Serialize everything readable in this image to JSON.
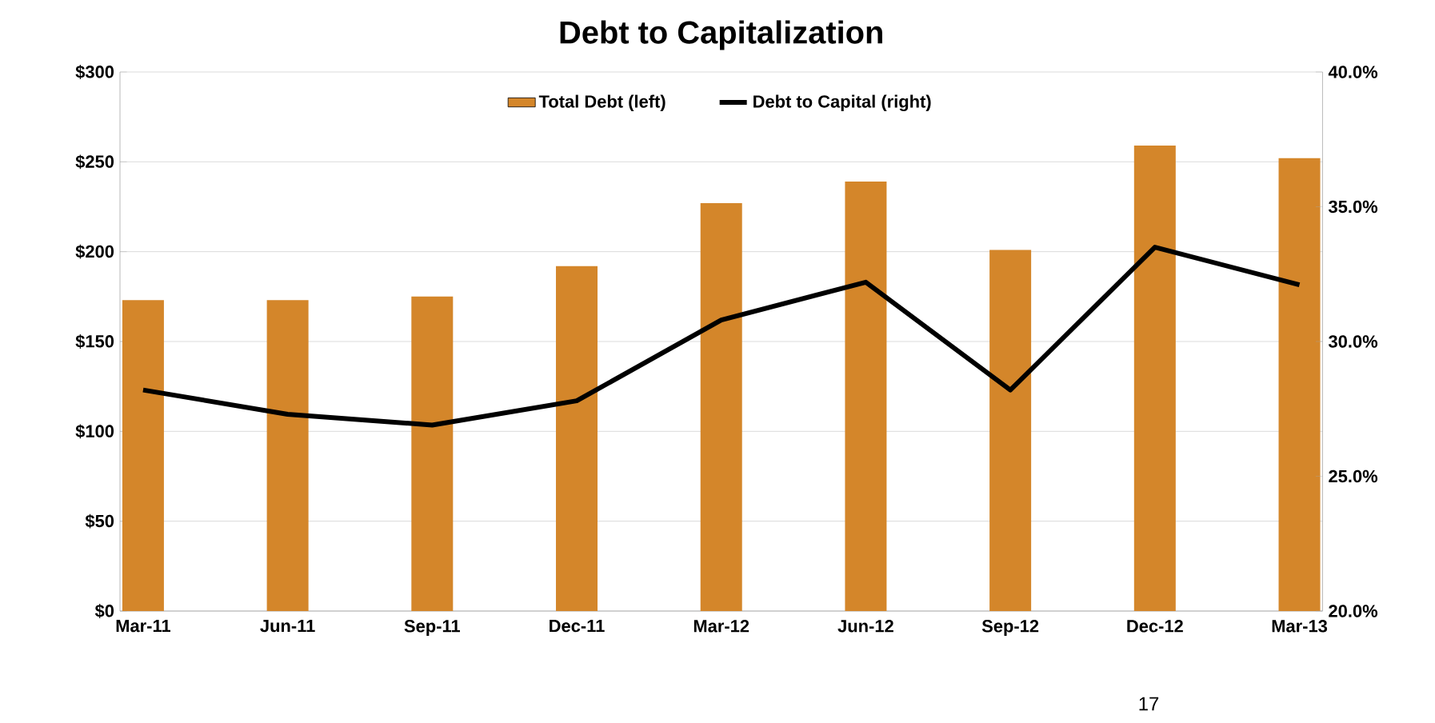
{
  "chart_data": {
    "type": "bar",
    "title": "Debt to Capitalization",
    "categories": [
      "Mar-11",
      "Jun-11",
      "Sep-11",
      "Dec-11",
      "Mar-12",
      "Jun-12",
      "Sep-12",
      "Dec-12",
      "Mar-13"
    ],
    "series": [
      {
        "name": "Total Debt (left)",
        "color": "#d4862a",
        "values": [
          173,
          173,
          175,
          192,
          227,
          239,
          201,
          259,
          252
        ]
      },
      {
        "name": "Debt to Capital (right)",
        "type": "line",
        "axis": "y2",
        "color": "#000000",
        "values": [
          28.2,
          27.3,
          26.9,
          27.8,
          30.8,
          32.2,
          28.2,
          33.5,
          32.1
        ]
      }
    ],
    "ylim": [
      0,
      300
    ],
    "yticks": [
      {
        "value": 0,
        "label": "$0"
      },
      {
        "value": 50,
        "label": "$50"
      },
      {
        "value": 100,
        "label": "$100"
      },
      {
        "value": 150,
        "label": "$150"
      },
      {
        "value": 200,
        "label": "$200"
      },
      {
        "value": 250,
        "label": "$250"
      },
      {
        "value": 300,
        "label": "$300"
      }
    ],
    "y2lim": [
      20,
      40
    ],
    "y2ticks": [
      {
        "value": 20,
        "label": "20.0%"
      },
      {
        "value": 25,
        "label": "25.0%"
      },
      {
        "value": 30,
        "label": "30.0%"
      },
      {
        "value": 35,
        "label": "35.0%"
      },
      {
        "value": 40,
        "label": "40.0%"
      }
    ],
    "grid": "y",
    "legend": "top",
    "marker": "none",
    "line_style": "solid",
    "annotations": [
      "17"
    ]
  }
}
